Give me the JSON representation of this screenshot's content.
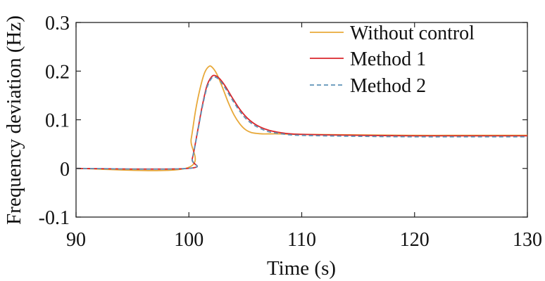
{
  "chart_data": {
    "type": "line",
    "xlabel": "Time (s)",
    "ylabel": "Frequency deviation (Hz)",
    "xlim": [
      90,
      130
    ],
    "ylim": [
      -0.1,
      0.3
    ],
    "x_ticks": [
      90,
      100,
      110,
      120,
      130
    ],
    "x_tick_labels": [
      "90",
      "100",
      "110",
      "120",
      "130"
    ],
    "y_ticks": [
      -0.1,
      0,
      0.1,
      0.2,
      0.3
    ],
    "y_tick_labels": [
      "-0.1",
      "0",
      "0.1",
      "0.2",
      "0.3"
    ],
    "grid": false,
    "legend_position": "top-right",
    "series": [
      {
        "name": "Without control",
        "color": "#e8a93a",
        "dash": "solid",
        "x": [
          90,
          99.7,
          100.2,
          100.6,
          101.0,
          101.4,
          101.8,
          102.1,
          102.5,
          103.0,
          103.5,
          104.0,
          104.5,
          105.0,
          105.5,
          106.0,
          106.5,
          107.0,
          108.0,
          110.0,
          115.0,
          120.0,
          125.0,
          130.0
        ],
        "y": [
          0,
          0,
          0.06,
          0.12,
          0.165,
          0.197,
          0.21,
          0.207,
          0.193,
          0.165,
          0.135,
          0.11,
          0.092,
          0.08,
          0.074,
          0.072,
          0.071,
          0.071,
          0.071,
          0.07,
          0.069,
          0.068,
          0.068,
          0.068
        ]
      },
      {
        "name": "Method 1",
        "color": "#d9262b",
        "dash": "solid",
        "x": [
          90,
          99.9,
          100.3,
          100.8,
          101.2,
          101.6,
          102.0,
          102.3,
          102.7,
          103.2,
          103.8,
          104.5,
          105.2,
          106.0,
          107.0,
          108.0,
          109.0,
          110.0,
          112.0,
          115.0,
          120.0,
          125.0,
          130.0
        ],
        "y": [
          0,
          0,
          0.02,
          0.08,
          0.13,
          0.17,
          0.188,
          0.191,
          0.185,
          0.17,
          0.147,
          0.122,
          0.103,
          0.089,
          0.079,
          0.074,
          0.071,
          0.07,
          0.069,
          0.068,
          0.067,
          0.067,
          0.067
        ]
      },
      {
        "name": "Method 2",
        "color": "#5f93b8",
        "dash": "dashed",
        "x": [
          90,
          99.9,
          100.3,
          100.8,
          101.2,
          101.6,
          102.0,
          102.3,
          102.7,
          103.2,
          103.8,
          104.5,
          105.2,
          106.0,
          107.0,
          108.0,
          109.0,
          110.0,
          112.0,
          115.0,
          120.0,
          125.0,
          130.0
        ],
        "y": [
          0,
          0,
          0.02,
          0.078,
          0.127,
          0.166,
          0.185,
          0.188,
          0.182,
          0.166,
          0.143,
          0.118,
          0.099,
          0.086,
          0.076,
          0.072,
          0.069,
          0.068,
          0.067,
          0.066,
          0.065,
          0.065,
          0.065
        ]
      }
    ]
  }
}
